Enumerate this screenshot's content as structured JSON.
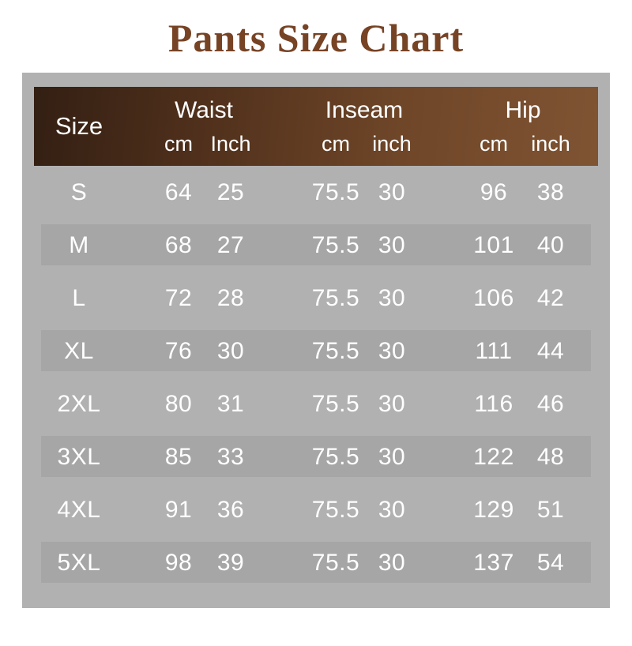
{
  "title": "Pants Size Chart",
  "colors": {
    "title_text": "#774325",
    "panel_bg": "#b1b1b1",
    "row_band_bg": "#a6a6a6",
    "header_gradient_left": "#331f13",
    "header_gradient_right": "#7f5433",
    "table_text": "#ffffff"
  },
  "table": {
    "header": {
      "size_label": "Size",
      "groups": [
        {
          "label": "Waist",
          "sub_cm": "cm",
          "sub_inch": "Inch"
        },
        {
          "label": "Inseam",
          "sub_cm": "cm",
          "sub_inch": "inch"
        },
        {
          "label": "Hip",
          "sub_cm": "cm",
          "sub_inch": "inch"
        }
      ]
    },
    "rows": [
      {
        "size": "S",
        "waist_cm": "64",
        "waist_inch": "25",
        "inseam_cm": "75.5",
        "inseam_inch": "30",
        "hip_cm": "96",
        "hip_inch": "38"
      },
      {
        "size": "M",
        "waist_cm": "68",
        "waist_inch": "27",
        "inseam_cm": "75.5",
        "inseam_inch": "30",
        "hip_cm": "101",
        "hip_inch": "40"
      },
      {
        "size": "L",
        "waist_cm": "72",
        "waist_inch": "28",
        "inseam_cm": "75.5",
        "inseam_inch": "30",
        "hip_cm": "106",
        "hip_inch": "42"
      },
      {
        "size": "XL",
        "waist_cm": "76",
        "waist_inch": "30",
        "inseam_cm": "75.5",
        "inseam_inch": "30",
        "hip_cm": "111",
        "hip_inch": "44"
      },
      {
        "size": "2XL",
        "waist_cm": "80",
        "waist_inch": "31",
        "inseam_cm": "75.5",
        "inseam_inch": "30",
        "hip_cm": "116",
        "hip_inch": "46"
      },
      {
        "size": "3XL",
        "waist_cm": "85",
        "waist_inch": "33",
        "inseam_cm": "75.5",
        "inseam_inch": "30",
        "hip_cm": "122",
        "hip_inch": "48"
      },
      {
        "size": "4XL",
        "waist_cm": "91",
        "waist_inch": "36",
        "inseam_cm": "75.5",
        "inseam_inch": "30",
        "hip_cm": "129",
        "hip_inch": "51"
      },
      {
        "size": "5XL",
        "waist_cm": "98",
        "waist_inch": "39",
        "inseam_cm": "75.5",
        "inseam_inch": "30",
        "hip_cm": "137",
        "hip_inch": "54"
      }
    ]
  },
  "chart_data": {
    "type": "table",
    "title": "Pants Size Chart",
    "columns": [
      "Size",
      "Waist cm",
      "Waist Inch",
      "Inseam cm",
      "Inseam inch",
      "Hip cm",
      "Hip inch"
    ],
    "rows": [
      [
        "S",
        64,
        25,
        75.5,
        30,
        96,
        38
      ],
      [
        "M",
        68,
        27,
        75.5,
        30,
        101,
        40
      ],
      [
        "L",
        72,
        28,
        75.5,
        30,
        106,
        42
      ],
      [
        "XL",
        76,
        30,
        75.5,
        30,
        111,
        44
      ],
      [
        "2XL",
        80,
        31,
        75.5,
        30,
        116,
        46
      ],
      [
        "3XL",
        85,
        33,
        75.5,
        30,
        122,
        48
      ],
      [
        "4XL",
        91,
        36,
        75.5,
        30,
        129,
        51
      ],
      [
        "5XL",
        98,
        39,
        75.5,
        30,
        137,
        54
      ]
    ]
  }
}
